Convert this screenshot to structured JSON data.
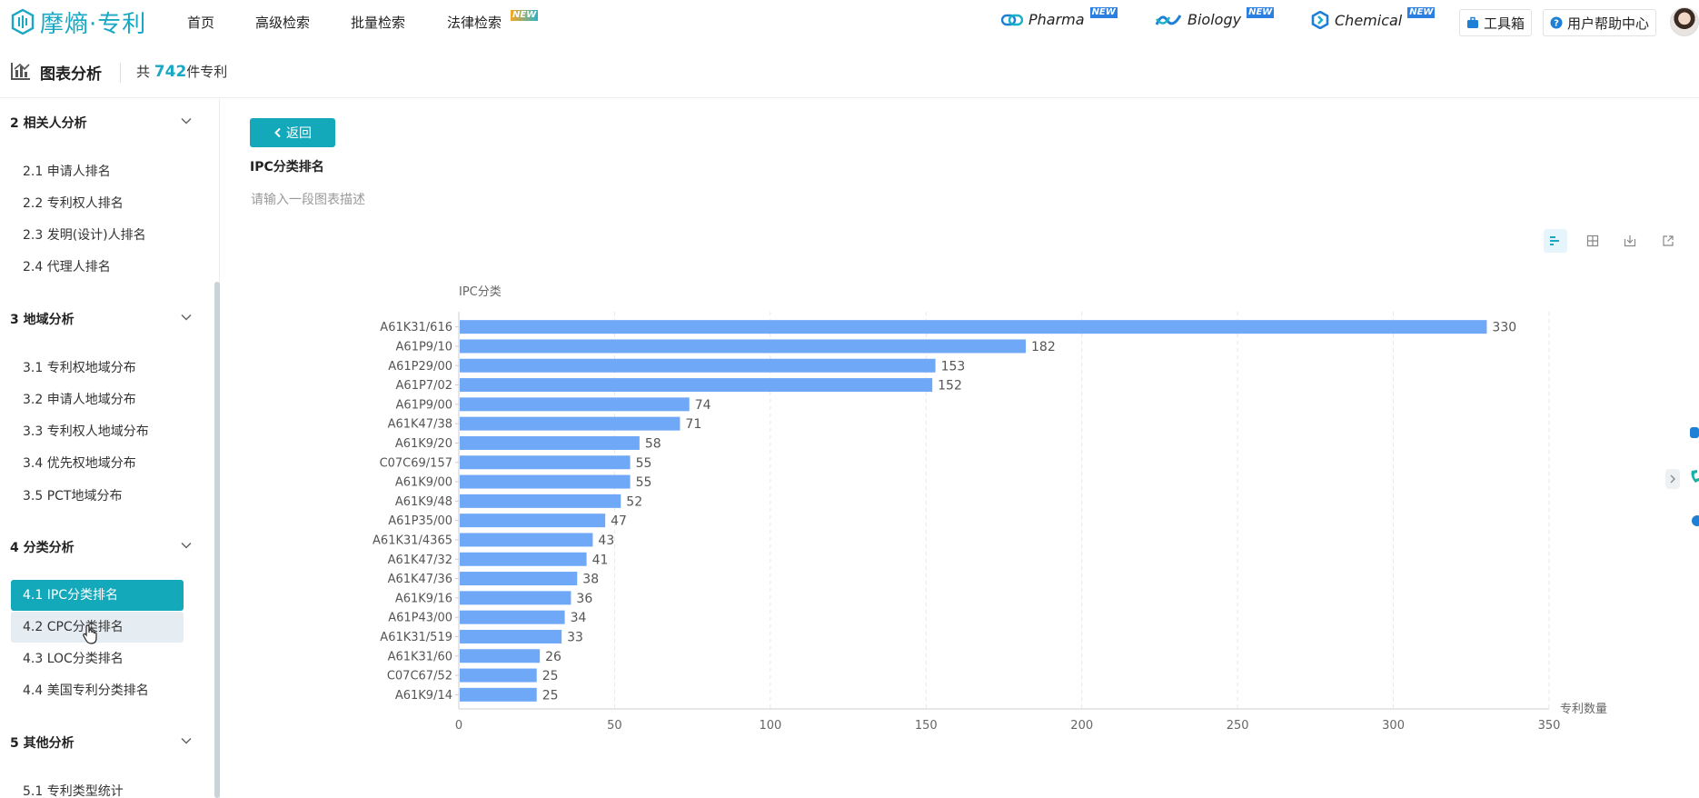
{
  "app": {
    "logo_text": "摩熵·专利",
    "nav": [
      {
        "label": "首页"
      },
      {
        "label": "高级检索"
      },
      {
        "label": "批量检索"
      },
      {
        "label": "法律检索",
        "badge": "NEW"
      }
    ],
    "products": [
      {
        "label": "Pharma",
        "badge": "NEW"
      },
      {
        "label": "Biology",
        "badge": "NEW"
      },
      {
        "label": "Chemical",
        "badge": "NEW"
      }
    ],
    "toolbox_label": "工具箱",
    "help_label": "用户帮助中心"
  },
  "subheader": {
    "title": "图表分析",
    "count_prefix": "共",
    "count": "742",
    "count_suffix": "件专利"
  },
  "sidebar": {
    "sections": [
      {
        "title": "2 相关人分析",
        "items": [
          "2.1 申请人排名",
          "2.2 专利权人排名",
          "2.3 发明(设计)人排名",
          "2.4 代理人排名"
        ]
      },
      {
        "title": "3 地域分析",
        "items": [
          "3.1 专利权地域分布",
          "3.2 申请人地域分布",
          "3.3 专利权人地域分布",
          "3.4 优先权地域分布",
          "3.5 PCT地域分布"
        ]
      },
      {
        "title": "4 分类分析",
        "items": [
          "4.1 IPC分类排名",
          "4.2 CPC分类排名",
          "4.3 LOC分类排名",
          "4.4 美国专利分类排名"
        ]
      },
      {
        "title": "5 其他分析",
        "items": [
          "5.1 专利类型统计"
        ]
      }
    ],
    "active_item": "4.1 IPC分类排名",
    "hover_item": "4.2 CPC分类排名"
  },
  "main": {
    "back_label": "返回",
    "chart_title": "IPC分类排名",
    "desc_placeholder": "请输入一段图表描述"
  },
  "chart_data": {
    "type": "bar",
    "orientation": "horizontal",
    "ylabel": "IPC分类",
    "xlabel": "专利数量",
    "xlim": [
      0,
      350
    ],
    "xticks": [
      0,
      50,
      100,
      150,
      200,
      250,
      300,
      350
    ],
    "grid": true,
    "bar_color": "#6fa8f7",
    "categories": [
      "A61K31/616",
      "A61P9/10",
      "A61P29/00",
      "A61P7/02",
      "A61P9/00",
      "A61K47/38",
      "A61K9/20",
      "C07C69/157",
      "A61K9/00",
      "A61K9/48",
      "A61P35/00",
      "A61K31/4365",
      "A61K47/32",
      "A61K47/36",
      "A61K9/16",
      "A61P43/00",
      "A61K31/519",
      "A61K31/60",
      "C07C67/52",
      "A61K9/14"
    ],
    "values": [
      330,
      182,
      153,
      152,
      74,
      71,
      58,
      55,
      55,
      52,
      47,
      43,
      41,
      38,
      36,
      34,
      33,
      26,
      25,
      25
    ]
  }
}
